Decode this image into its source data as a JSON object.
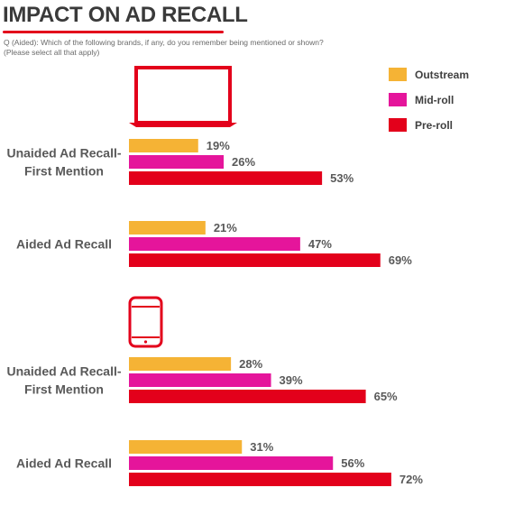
{
  "header": {
    "title": "IMPACT ON AD RECALL",
    "question_line1": "Q (Aided): Which of the following brands, if any, do you remember being mentioned or shown?",
    "question_line2": "(Please select all that apply)"
  },
  "colors": {
    "title_underline": "#e3001b",
    "device_icon": "#e3001b",
    "Outstream": "#f5b335",
    "Mid-roll": "#e5159b",
    "Pre-roll": "#e3001b"
  },
  "icons": [
    "laptop-icon",
    "smartphone-icon"
  ],
  "chart_data": {
    "type": "bar",
    "orientation": "horizontal",
    "title": "IMPACT ON AD RECALL",
    "legend_position": "top-right",
    "value_suffix": "%",
    "groups": [
      {
        "device": "laptop",
        "categories": [
          "Unaided Ad Recall-\nFirst Mention",
          "Aided Ad Recall"
        ]
      },
      {
        "device": "smartphone",
        "categories": [
          "Unaided Ad Recall-\nFirst Mention",
          "Aided Ad Recall"
        ]
      }
    ],
    "series": [
      {
        "name": "Outstream",
        "values": [
          19,
          21,
          28,
          31
        ]
      },
      {
        "name": "Mid-roll",
        "values": [
          26,
          47,
          39,
          56
        ]
      },
      {
        "name": "Pre-roll",
        "values": [
          53,
          69,
          65,
          72
        ]
      }
    ]
  }
}
